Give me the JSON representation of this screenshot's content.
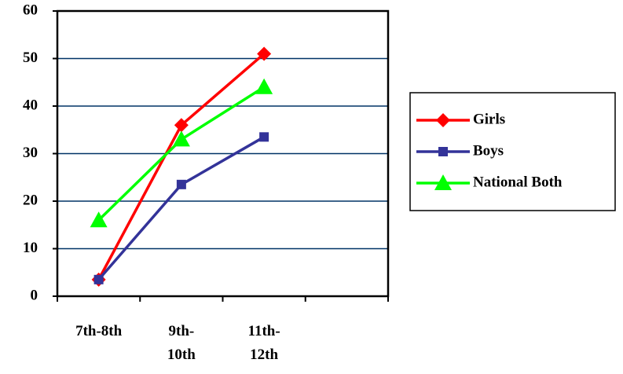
{
  "chart_data": {
    "type": "line",
    "categories": [
      "7th-8th",
      "9th-10th",
      "11th-12th",
      null
    ],
    "series": [
      {
        "name": "Girls",
        "color": "#ff0000",
        "marker": "diamond",
        "values": [
          3.5,
          36,
          51,
          null
        ]
      },
      {
        "name": "Boys",
        "color": "#333399",
        "marker": "square",
        "values": [
          3.5,
          23.5,
          33.5,
          null
        ]
      },
      {
        "name": "National Both",
        "color": "#00ff00",
        "marker": "triangle",
        "values": [
          16,
          33,
          44,
          null
        ]
      }
    ],
    "ylim": [
      0,
      60
    ],
    "yticks": [
      0,
      10,
      20,
      30,
      40,
      50,
      60
    ],
    "grid": true,
    "grid_color": "#003366",
    "legend": "right"
  }
}
